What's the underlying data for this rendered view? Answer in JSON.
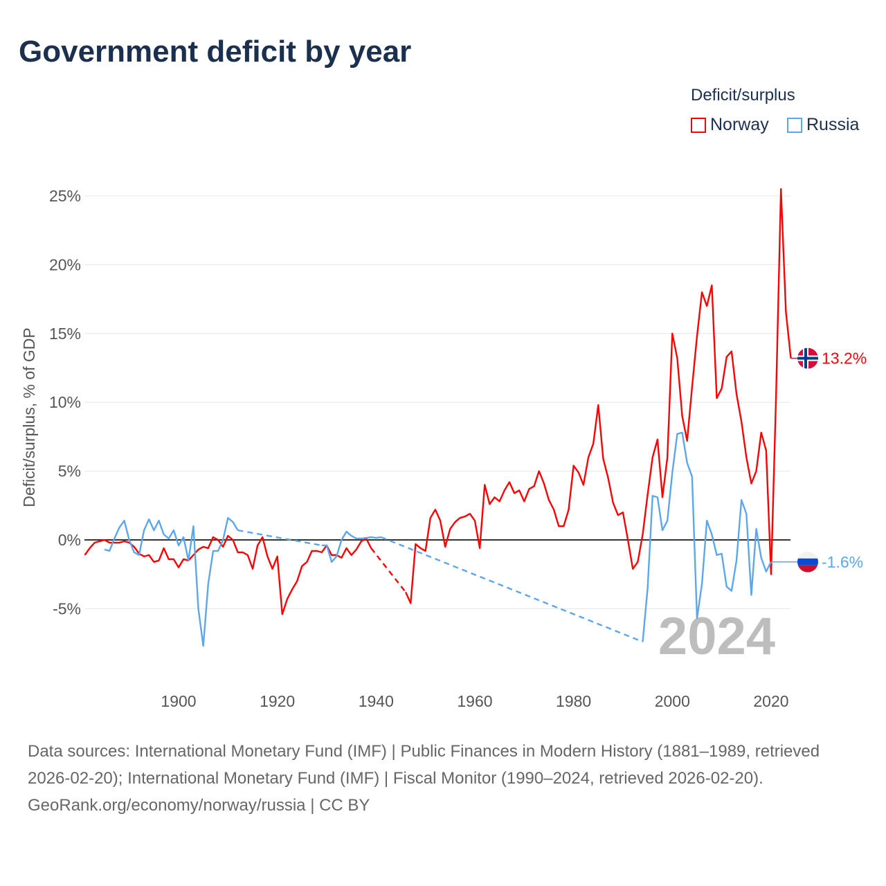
{
  "title": "Government deficit by year",
  "legend": {
    "title": "Deficit/surplus",
    "items": [
      {
        "name": "Norway",
        "color": "#ff0000"
      },
      {
        "name": "Russia",
        "color": "#5ba6ec"
      }
    ]
  },
  "footer": {
    "sources": "Data sources: International Monetary Fund (IMF) | Public Finances in Modern History (1881–1989, retrieved 2026-02-20); International Monetary Fund (IMF) | Fiscal Monitor (1990–2024, retrieved 2026-02-20).",
    "credit": "GeoRank.org/economy/norway/russia | CC BY"
  },
  "chart_data": {
    "type": "line",
    "title": "Government deficit by year",
    "xlabel": "",
    "ylabel": "Deficit/surplus, % of GDP",
    "xlim": [
      1880,
      2024
    ],
    "ylim": [
      -10,
      27
    ],
    "x_ticks": [
      1900,
      1920,
      1940,
      1960,
      1980,
      2000,
      2020
    ],
    "x_tick_labels": [
      "1900",
      "1920",
      "1940",
      "1960",
      "1980",
      "2000",
      "2020"
    ],
    "y_ticks": [
      -5,
      0,
      5,
      10,
      15,
      20,
      25
    ],
    "y_tick_labels": [
      "-5%",
      "0%",
      "5%",
      "10%",
      "15%",
      "20%",
      "25%"
    ],
    "watermark_year": "2024",
    "series": [
      {
        "name": "Norway",
        "color": "#ff0000",
        "end_label": "13.2%",
        "start_year": 1881,
        "values": [
          -1.1,
          -0.6,
          -0.2,
          -0.1,
          0,
          -0.2,
          -0.2,
          -0.2,
          -0.1,
          -0.2,
          -0.5,
          -1.0,
          -1.2,
          -1.1,
          -1.6,
          -1.5,
          -0.6,
          -1.4,
          -1.4,
          -2.0,
          -1.4,
          -1.5,
          -1.1,
          -0.7,
          -0.5,
          -0.6,
          0.2,
          0,
          -0.5,
          0.3,
          0,
          -0.9,
          -0.9,
          -1.1,
          -2.1,
          -0.4,
          0.2,
          -1.2,
          -2.1,
          -1.2,
          -5.4,
          -4.3,
          -3.6,
          -3.0,
          -1.9,
          -1.6,
          -0.8,
          -0.8,
          -0.9,
          -0.4,
          -1.1,
          -1.1,
          -1.3,
          -0.6,
          -1.1,
          -0.7,
          -0.1,
          0.1,
          -0.6,
          null,
          null,
          null,
          null,
          null,
          null,
          -3.8,
          -4.6,
          -0.3,
          -0.6,
          -0.8,
          1.6,
          2.2,
          1.4,
          -0.5,
          0.8,
          1.3,
          1.6,
          1.7,
          1.9,
          1.4,
          -0.6,
          4.0,
          2.6,
          3.1,
          2.8,
          3.6,
          4.2,
          3.4,
          3.6,
          2.8,
          3.7,
          3.9,
          5.0,
          4.1,
          2.9,
          2.2,
          1.0,
          1.0,
          2.2,
          5.4,
          4.9,
          4.0,
          6.0,
          7.0,
          9.8,
          5.9,
          4.5,
          2.7,
          1.8,
          2.0,
          0,
          -2.1,
          -1.6,
          0.4,
          3.3,
          6.0,
          7.3,
          3.1,
          6.0,
          15.0,
          13.2,
          9.0,
          7.2,
          11.1,
          14.8,
          18.0,
          17.0,
          18.5,
          10.3,
          11.0,
          13.3,
          13.7,
          10.6,
          8.6,
          6.0,
          4.1,
          5.0,
          7.8,
          6.5,
          -2.5,
          10.3,
          25.5,
          16.6,
          13.2
        ]
      },
      {
        "name": "Russia",
        "color": "#5ba6ec",
        "end_label": "-1.6%",
        "start_year": 1885,
        "values": [
          -0.7,
          -0.8,
          0.1,
          0.9,
          1.4,
          0,
          -0.9,
          -1.1,
          0.7,
          1.5,
          0.7,
          1.4,
          0.4,
          0.1,
          0.7,
          -0.4,
          0.2,
          -1.5,
          1.0,
          -5.0,
          -7.7,
          -3.2,
          -0.8,
          -0.8,
          0,
          1.6,
          1.3,
          0.7,
          null,
          null,
          null,
          null,
          null,
          null,
          null,
          null,
          null,
          null,
          null,
          null,
          null,
          null,
          null,
          null,
          -0.4,
          -0.4,
          -1.6,
          -1.2,
          0.0,
          0.6,
          0.3,
          0.1,
          0.1,
          0.15,
          0.2,
          0.15,
          0.2,
          null,
          null,
          null,
          null,
          null,
          null,
          null,
          null,
          null,
          null,
          null,
          null,
          null,
          null,
          null,
          null,
          null,
          null,
          null,
          null,
          null,
          null,
          null,
          null,
          null,
          null,
          null,
          null,
          null,
          null,
          null,
          null,
          null,
          null,
          null,
          null,
          null,
          null,
          null,
          null,
          null,
          null,
          null,
          null,
          null,
          null,
          null,
          null,
          null,
          null,
          null,
          null,
          -7.4,
          -3.5,
          3.2,
          3.1,
          0.7,
          1.4,
          4.9,
          7.7,
          7.8,
          5.6,
          4.6,
          -5.7,
          -3.2,
          1.4,
          0.4,
          -1.1,
          -1.0,
          -3.4,
          -3.7,
          -1.5,
          2.9,
          1.9,
          -4.0,
          0.8,
          -1.3,
          -2.3,
          -1.6
        ]
      }
    ]
  }
}
